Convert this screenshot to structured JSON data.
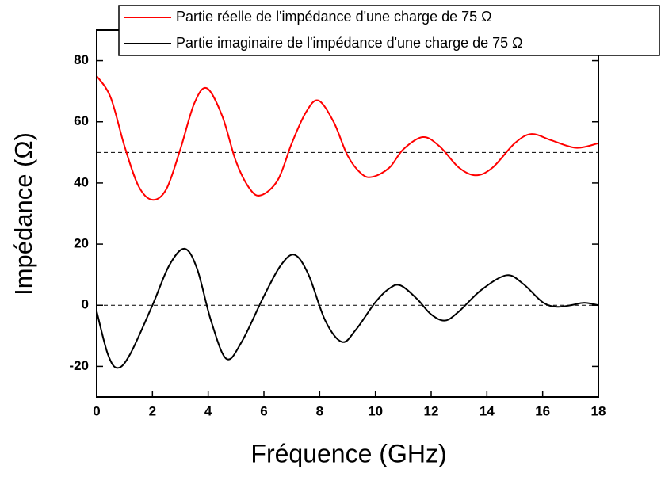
{
  "chart_data": {
    "type": "line",
    "xlabel": "Fréquence (GHz)",
    "ylabel": "Impédance (Ω)",
    "xlim": [
      0,
      18
    ],
    "xticks": [
      0,
      2,
      4,
      6,
      8,
      10,
      12,
      14,
      16,
      18
    ],
    "ylim": [
      -30,
      90
    ],
    "yticks": [
      -20,
      0,
      20,
      40,
      60,
      80
    ],
    "reference_lines": [
      50,
      0
    ],
    "series": [
      {
        "name": "Partie réelle de l'impédance d'une charge de 75 Ω",
        "color": "#ff0000",
        "x": [
          0,
          0.5,
          1,
          1.5,
          2,
          2.5,
          3,
          3.5,
          3.95,
          4.5,
          5,
          5.5,
          5.9,
          6.5,
          7,
          7.5,
          7.95,
          8.5,
          9,
          9.5,
          9.9,
          10.5,
          11,
          11.7,
          12.3,
          13,
          13.6,
          14.2,
          15,
          15.6,
          16.3,
          17.2,
          18
        ],
        "values": [
          75,
          68,
          52,
          39,
          34.5,
          38,
          51,
          66,
          71,
          62,
          47,
          38,
          36,
          41,
          53,
          63,
          67,
          60,
          49,
          43,
          42,
          45,
          51,
          55,
          52,
          45,
          42.5,
          45,
          53,
          56,
          54,
          51.5,
          53
        ]
      },
      {
        "name": "Partie imaginaire de l'impédance d'une charge de 75 Ω",
        "color": "#000000",
        "x": [
          0,
          0.4,
          0.75,
          1.2,
          2,
          2.6,
          3.15,
          3.6,
          4.1,
          4.65,
          5.2,
          6,
          6.6,
          7.1,
          7.6,
          8.2,
          8.8,
          9.3,
          10,
          10.5,
          10.9,
          11.5,
          12,
          12.5,
          13,
          13.8,
          14.7,
          15.3,
          16,
          16.5,
          17,
          17.5,
          18
        ],
        "values": [
          -2,
          -16,
          -20.5,
          -16,
          0,
          13,
          18.5,
          12,
          -5,
          -17.5,
          -12,
          3,
          13,
          16.5,
          10,
          -5,
          -12,
          -8,
          1,
          5.5,
          6.5,
          2,
          -3,
          -5,
          -2,
          5,
          9.8,
          7,
          1,
          -0.5,
          0,
          0.8,
          0
        ]
      }
    ]
  }
}
